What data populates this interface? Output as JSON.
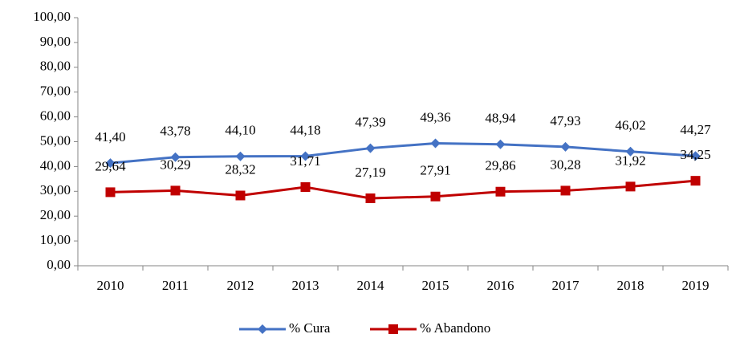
{
  "chart_data": {
    "type": "line",
    "categories": [
      "2010",
      "2011",
      "2012",
      "2013",
      "2014",
      "2015",
      "2016",
      "2017",
      "2018",
      "2019"
    ],
    "series": [
      {
        "name": "% Cura",
        "color": "#4472c4",
        "marker": "diamond",
        "values": [
          41.4,
          43.78,
          44.1,
          44.18,
          47.39,
          49.36,
          48.94,
          47.93,
          46.02,
          44.27
        ],
        "value_labels": [
          "41,40",
          "43,78",
          "44,10",
          "44,18",
          "47,39",
          "49,36",
          "48,94",
          "47,93",
          "46,02",
          "44,27"
        ]
      },
      {
        "name": "% Abandono",
        "color": "#c00000",
        "marker": "square",
        "values": [
          29.64,
          30.29,
          28.32,
          31.71,
          27.19,
          27.91,
          29.86,
          30.28,
          31.92,
          34.25
        ],
        "value_labels": [
          "29,64",
          "30,29",
          "28,32",
          "31,71",
          "27,19",
          "27,91",
          "29,86",
          "30,28",
          "31,92",
          "34,25"
        ]
      }
    ],
    "ylim": [
      0,
      100
    ],
    "yticks": [
      {
        "value": 0,
        "label": "0,00"
      },
      {
        "value": 10,
        "label": "10,00"
      },
      {
        "value": 20,
        "label": "20,00"
      },
      {
        "value": 30,
        "label": "30,00"
      },
      {
        "value": 40,
        "label": "40,00"
      },
      {
        "value": 50,
        "label": "50,00"
      },
      {
        "value": 60,
        "label": "60,00"
      },
      {
        "value": 70,
        "label": "70,00"
      },
      {
        "value": 80,
        "label": "80,00"
      },
      {
        "value": 90,
        "label": "90,00"
      },
      {
        "value": 100,
        "label": "100,00"
      }
    ],
    "grid": false,
    "legend": "bottom"
  }
}
